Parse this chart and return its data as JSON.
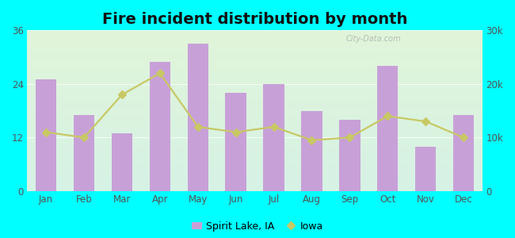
{
  "months": [
    "Jan",
    "Feb",
    "Mar",
    "Apr",
    "May",
    "Jun",
    "Jul",
    "Aug",
    "Sep",
    "Oct",
    "Nov",
    "Dec"
  ],
  "bar_values": [
    25,
    17,
    13,
    29,
    33,
    22,
    24,
    18,
    16,
    28,
    10,
    17
  ],
  "line_values": [
    11000,
    10000,
    18000,
    22000,
    12000,
    11000,
    12000,
    9500,
    10000,
    14000,
    13000,
    10000
  ],
  "bar_color": "#c8a0d8",
  "line_color": "#c8c864",
  "line_marker_color": "#c8c864",
  "background_color": "#00ffff",
  "title": "Fire incident distribution by month",
  "title_fontsize": 14,
  "left_ylim": [
    0,
    36
  ],
  "right_ylim": [
    0,
    30000
  ],
  "left_yticks": [
    0,
    12,
    24,
    36
  ],
  "right_yticks": [
    0,
    10000,
    20000,
    30000
  ],
  "right_yticklabels": [
    "0",
    "10k",
    "20k",
    "30k"
  ],
  "legend_label_bar": "Spirit Lake, IA",
  "legend_label_line": "Iowa",
  "watermark": "City-Data.com"
}
